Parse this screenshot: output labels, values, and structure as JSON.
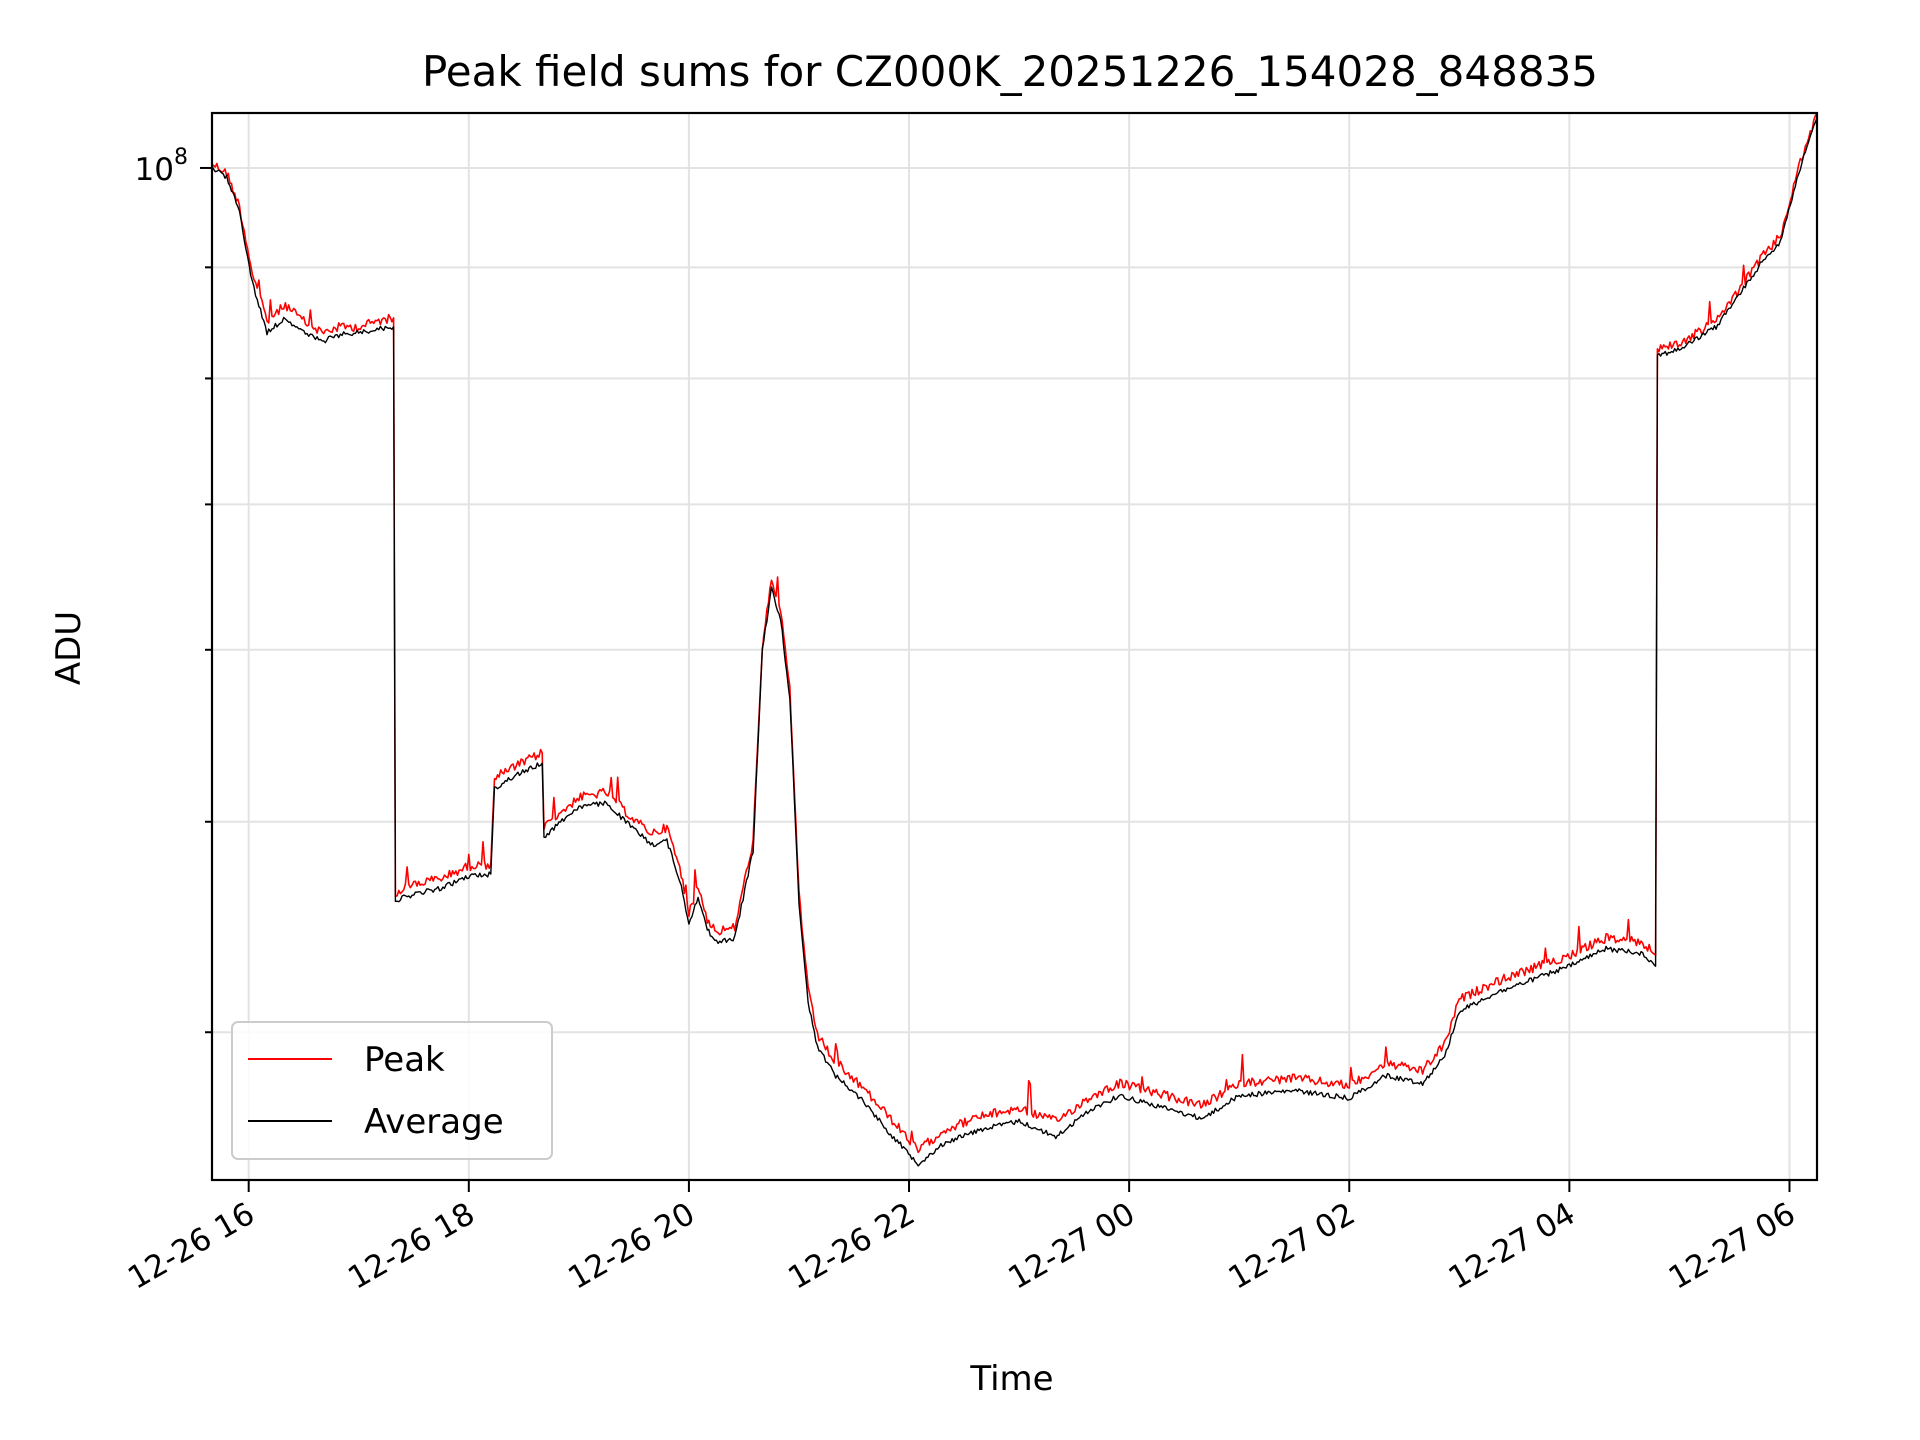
{
  "chart_data": {
    "type": "line",
    "title": "Peak field sums for CZ000K_20251226_154028_848835",
    "xlabel": "Time",
    "ylabel": "ADU",
    "y_scale": "log",
    "xlim": [
      "2025-12-26 15:40",
      "2025-12-27 06:15"
    ],
    "ylim": [
      34200000,
      106000000
    ],
    "grid": true,
    "legend_position": "lower-left",
    "x_ticks": [
      {
        "value": "2025-12-26 16:00",
        "label": "12-26 16"
      },
      {
        "value": "2025-12-26 18:00",
        "label": "12-26 18"
      },
      {
        "value": "2025-12-26 20:00",
        "label": "12-26 20"
      },
      {
        "value": "2025-12-26 22:00",
        "label": "12-26 22"
      },
      {
        "value": "2025-12-27 00:00",
        "label": "12-27 00"
      },
      {
        "value": "2025-12-27 02:00",
        "label": "12-27 02"
      },
      {
        "value": "2025-12-27 04:00",
        "label": "12-27 04"
      },
      {
        "value": "2025-12-27 06:00",
        "label": "12-27 06"
      }
    ],
    "y_major_ticks": [
      {
        "value": 100000000,
        "label_base": "10",
        "label_exponent": "8"
      }
    ],
    "y_minor_ticks": [
      40000000,
      50000000,
      60000000,
      70000000,
      80000000,
      90000000
    ],
    "series": [
      {
        "name": "Peak",
        "color": "#ff0000",
        "x": [
          "2025-12-26 15:40",
          "2025-12-26 15:48",
          "2025-12-26 15:55",
          "2025-12-26 16:02",
          "2025-12-26 16:10",
          "2025-12-26 16:20",
          "2025-12-26 16:30",
          "2025-12-26 16:40",
          "2025-12-26 16:50",
          "2025-12-26 17:00",
          "2025-12-26 17:10",
          "2025-12-26 17:19",
          "2025-12-26 17:20",
          "2025-12-26 17:30",
          "2025-12-26 17:45",
          "2025-12-26 18:00",
          "2025-12-26 18:12",
          "2025-12-26 18:14",
          "2025-12-26 18:25",
          "2025-12-26 18:40",
          "2025-12-26 18:41",
          "2025-12-26 18:50",
          "2025-12-26 19:00",
          "2025-12-26 19:15",
          "2025-12-26 19:30",
          "2025-12-26 19:40",
          "2025-12-26 19:48",
          "2025-12-26 19:55",
          "2025-12-26 20:00",
          "2025-12-26 20:05",
          "2025-12-26 20:10",
          "2025-12-26 20:15",
          "2025-12-26 20:25",
          "2025-12-26 20:35",
          "2025-12-26 20:40",
          "2025-12-26 20:45",
          "2025-12-26 20:50",
          "2025-12-26 20:55",
          "2025-12-26 21:00",
          "2025-12-26 21:05",
          "2025-12-26 21:10",
          "2025-12-26 21:20",
          "2025-12-26 21:35",
          "2025-12-26 21:50",
          "2025-12-26 22:05",
          "2025-12-26 22:20",
          "2025-12-26 22:40",
          "2025-12-26 23:00",
          "2025-12-26 23:20",
          "2025-12-26 23:40",
          "2025-12-26 23:55",
          "2025-12-27 00:20",
          "2025-12-27 00:40",
          "2025-12-27 01:00",
          "2025-12-27 01:30",
          "2025-12-27 02:00",
          "2025-12-27 02:20",
          "2025-12-27 02:40",
          "2025-12-27 02:52",
          "2025-12-27 03:00",
          "2025-12-27 03:20",
          "2025-12-27 03:40",
          "2025-12-27 04:00",
          "2025-12-27 04:20",
          "2025-12-27 04:40",
          "2025-12-27 04:47",
          "2025-12-27 04:48",
          "2025-12-27 05:00",
          "2025-12-27 05:20",
          "2025-12-27 05:35",
          "2025-12-27 05:45",
          "2025-12-27 05:55",
          "2025-12-27 06:05",
          "2025-12-27 06:15"
        ],
        "values": [
          100500000,
          99500000,
          96000000,
          89500000,
          85000000,
          86500000,
          85000000,
          84000000,
          84500000,
          84500000,
          85000000,
          85300000,
          46400000,
          46800000,
          47100000,
          47700000,
          47800000,
          52400000,
          53000000,
          53800000,
          49800000,
          50500000,
          51300000,
          51600000,
          50100000,
          49400000,
          49700000,
          47600000,
          45400000,
          46700000,
          45100000,
          44500000,
          44700000,
          49000000,
          60000000,
          64800000,
          62500000,
          57500000,
          46400000,
          41800000,
          39900000,
          38700000,
          37700000,
          36500000,
          35300000,
          36100000,
          36600000,
          36900000,
          36400000,
          37400000,
          37900000,
          37400000,
          37000000,
          37900000,
          38100000,
          37800000,
          38700000,
          38400000,
          39500000,
          41400000,
          42200000,
          42800000,
          43400000,
          44200000,
          44000000,
          43400000,
          82600000,
          83000000,
          85000000,
          88500000,
          91000000,
          93000000,
          100000000,
          106000000
        ]
      },
      {
        "name": "Average",
        "color": "#000000",
        "x": [
          "2025-12-26 15:40",
          "2025-12-26 15:48",
          "2025-12-26 15:55",
          "2025-12-26 16:02",
          "2025-12-26 16:10",
          "2025-12-26 16:20",
          "2025-12-26 16:30",
          "2025-12-26 16:40",
          "2025-12-26 16:50",
          "2025-12-26 17:00",
          "2025-12-26 17:10",
          "2025-12-26 17:19",
          "2025-12-26 17:20",
          "2025-12-26 17:30",
          "2025-12-26 17:45",
          "2025-12-26 18:00",
          "2025-12-26 18:12",
          "2025-12-26 18:14",
          "2025-12-26 18:25",
          "2025-12-26 18:40",
          "2025-12-26 18:41",
          "2025-12-26 18:50",
          "2025-12-26 19:00",
          "2025-12-26 19:15",
          "2025-12-26 19:30",
          "2025-12-26 19:40",
          "2025-12-26 19:48",
          "2025-12-26 19:55",
          "2025-12-26 20:00",
          "2025-12-26 20:05",
          "2025-12-26 20:10",
          "2025-12-26 20:15",
          "2025-12-26 20:25",
          "2025-12-26 20:35",
          "2025-12-26 20:40",
          "2025-12-26 20:45",
          "2025-12-26 20:50",
          "2025-12-26 20:55",
          "2025-12-26 21:00",
          "2025-12-26 21:05",
          "2025-12-26 21:10",
          "2025-12-26 21:20",
          "2025-12-26 21:35",
          "2025-12-26 21:50",
          "2025-12-26 22:05",
          "2025-12-26 22:20",
          "2025-12-26 22:40",
          "2025-12-26 23:00",
          "2025-12-26 23:20",
          "2025-12-26 23:40",
          "2025-12-26 23:55",
          "2025-12-27 00:20",
          "2025-12-27 00:40",
          "2025-12-27 01:00",
          "2025-12-27 01:30",
          "2025-12-27 02:00",
          "2025-12-27 02:20",
          "2025-12-27 02:40",
          "2025-12-27 02:52",
          "2025-12-27 03:00",
          "2025-12-27 03:20",
          "2025-12-27 03:40",
          "2025-12-27 04:00",
          "2025-12-27 04:20",
          "2025-12-27 04:40",
          "2025-12-27 04:47",
          "2025-12-27 04:48",
          "2025-12-27 05:00",
          "2025-12-27 05:20",
          "2025-12-27 05:35",
          "2025-12-27 05:45",
          "2025-12-27 05:55",
          "2025-12-27 06:05",
          "2025-12-27 06:15"
        ],
        "values": [
          100000000,
          99000000,
          95500000,
          88500000,
          84000000,
          85300000,
          84000000,
          83200000,
          83800000,
          84000000,
          84300000,
          84500000,
          46000000,
          46300000,
          46600000,
          47200000,
          47300000,
          51800000,
          52500000,
          53200000,
          49200000,
          50000000,
          50800000,
          51000000,
          49600000,
          48800000,
          49000000,
          47000000,
          44900000,
          46200000,
          44600000,
          44000000,
          44200000,
          48500000,
          60000000,
          64000000,
          62000000,
          57000000,
          45900000,
          41300000,
          39400000,
          38200000,
          37200000,
          35900000,
          34800000,
          35600000,
          36100000,
          36400000,
          35800000,
          36900000,
          37400000,
          36900000,
          36500000,
          37400000,
          37600000,
          37300000,
          38200000,
          37900000,
          39000000,
          40900000,
          41700000,
          42300000,
          42900000,
          43700000,
          43500000,
          42900000,
          82000000,
          82500000,
          84500000,
          88000000,
          90500000,
          92500000,
          99500000,
          105500000
        ]
      }
    ]
  }
}
